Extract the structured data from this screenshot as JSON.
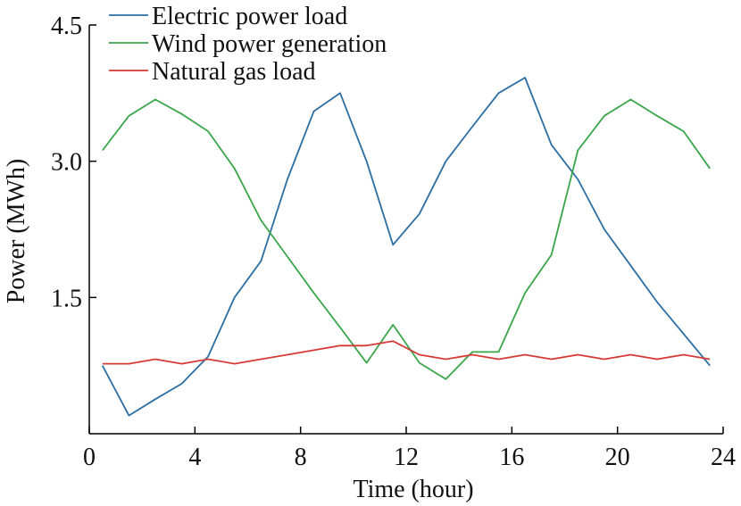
{
  "chart_data": {
    "type": "line",
    "xlabel": "Time (hour)",
    "ylabel": "Power (MWh)",
    "xlim": [
      0,
      24
    ],
    "ylim": [
      0,
      4.5
    ],
    "xticks": [
      0,
      4,
      8,
      12,
      16,
      20,
      24
    ],
    "xtick_labels": [
      "0",
      "4",
      "8",
      "12",
      "16",
      "20",
      "24"
    ],
    "yticks": [
      1.5,
      3.0,
      4.5
    ],
    "ytick_labels": [
      "1.5",
      "3.0",
      "4.5"
    ],
    "grid": false,
    "legend_position": "top-left",
    "x": [
      0.5,
      1.5,
      2.5,
      3.5,
      4.5,
      5.5,
      6.5,
      7.5,
      8.5,
      9.5,
      10.5,
      11.5,
      12.5,
      13.5,
      14.5,
      15.5,
      16.5,
      17.5,
      18.5,
      19.5,
      20.5,
      21.5,
      22.5,
      23.5
    ],
    "series": [
      {
        "name": "Electric power load",
        "color": "#2b6ea3",
        "values": [
          0.75,
          0.2,
          0.38,
          0.55,
          0.85,
          1.5,
          1.9,
          2.8,
          3.55,
          3.75,
          3.0,
          2.08,
          2.42,
          3.0,
          3.38,
          3.75,
          3.92,
          3.18,
          2.8,
          2.25,
          1.85,
          1.45,
          1.1,
          0.75
        ]
      },
      {
        "name": "Wind power generation",
        "color": "#3aa64a",
        "values": [
          3.12,
          3.5,
          3.68,
          3.52,
          3.33,
          2.92,
          2.35,
          1.95,
          1.55,
          1.17,
          0.78,
          1.2,
          0.78,
          0.6,
          0.9,
          0.9,
          1.55,
          1.97,
          3.12,
          3.5,
          3.68,
          3.5,
          3.33,
          2.92
        ]
      },
      {
        "name": "Natural gas load",
        "color": "#d63a36",
        "values": [
          0.77,
          0.77,
          0.82,
          0.77,
          0.82,
          0.77,
          0.82,
          0.87,
          0.92,
          0.97,
          0.97,
          1.02,
          0.87,
          0.82,
          0.87,
          0.82,
          0.87,
          0.82,
          0.87,
          0.82,
          0.87,
          0.82,
          0.87,
          0.82
        ]
      }
    ]
  }
}
